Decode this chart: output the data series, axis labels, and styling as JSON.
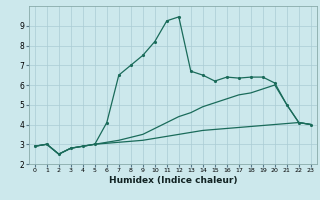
{
  "xlabel": "Humidex (Indice chaleur)",
  "ylabel": "",
  "bg_color": "#cce8ec",
  "grid_color": "#aaccd4",
  "line_color": "#1a6b5a",
  "xlim": [
    -0.5,
    23.5
  ],
  "ylim": [
    2,
    10
  ],
  "xticks": [
    0,
    1,
    2,
    3,
    4,
    5,
    6,
    7,
    8,
    9,
    10,
    11,
    12,
    13,
    14,
    15,
    16,
    17,
    18,
    19,
    20,
    21,
    22,
    23
  ],
  "yticks": [
    2,
    3,
    4,
    5,
    6,
    7,
    8,
    9
  ],
  "line1_x": [
    0,
    1,
    2,
    3,
    4,
    5,
    6,
    7,
    8,
    9,
    10,
    11,
    12,
    13,
    14,
    15,
    16,
    17,
    18,
    19,
    20,
    21,
    22,
    23
  ],
  "line1_y": [
    2.9,
    3.0,
    2.5,
    2.8,
    2.9,
    3.0,
    4.1,
    6.5,
    7.0,
    7.5,
    8.2,
    9.25,
    9.45,
    6.7,
    6.5,
    6.2,
    6.4,
    6.35,
    6.4,
    6.4,
    6.1,
    5.0,
    4.1,
    4.0
  ],
  "line2_x": [
    0,
    1,
    2,
    3,
    4,
    5,
    6,
    7,
    8,
    9,
    10,
    11,
    12,
    13,
    14,
    15,
    16,
    17,
    18,
    19,
    20,
    21,
    22,
    23
  ],
  "line2_y": [
    2.9,
    3.0,
    2.5,
    2.8,
    2.9,
    3.0,
    3.05,
    3.1,
    3.15,
    3.2,
    3.3,
    3.4,
    3.5,
    3.6,
    3.7,
    3.75,
    3.8,
    3.85,
    3.9,
    3.95,
    4.0,
    4.05,
    4.1,
    4.0
  ],
  "line3_x": [
    0,
    1,
    2,
    3,
    4,
    5,
    6,
    7,
    8,
    9,
    10,
    11,
    12,
    13,
    14,
    15,
    16,
    17,
    18,
    19,
    20,
    21,
    22,
    23
  ],
  "line3_y": [
    2.9,
    3.0,
    2.5,
    2.8,
    2.9,
    3.0,
    3.1,
    3.2,
    3.35,
    3.5,
    3.8,
    4.1,
    4.4,
    4.6,
    4.9,
    5.1,
    5.3,
    5.5,
    5.6,
    5.8,
    6.0,
    5.0,
    4.1,
    4.0
  ]
}
